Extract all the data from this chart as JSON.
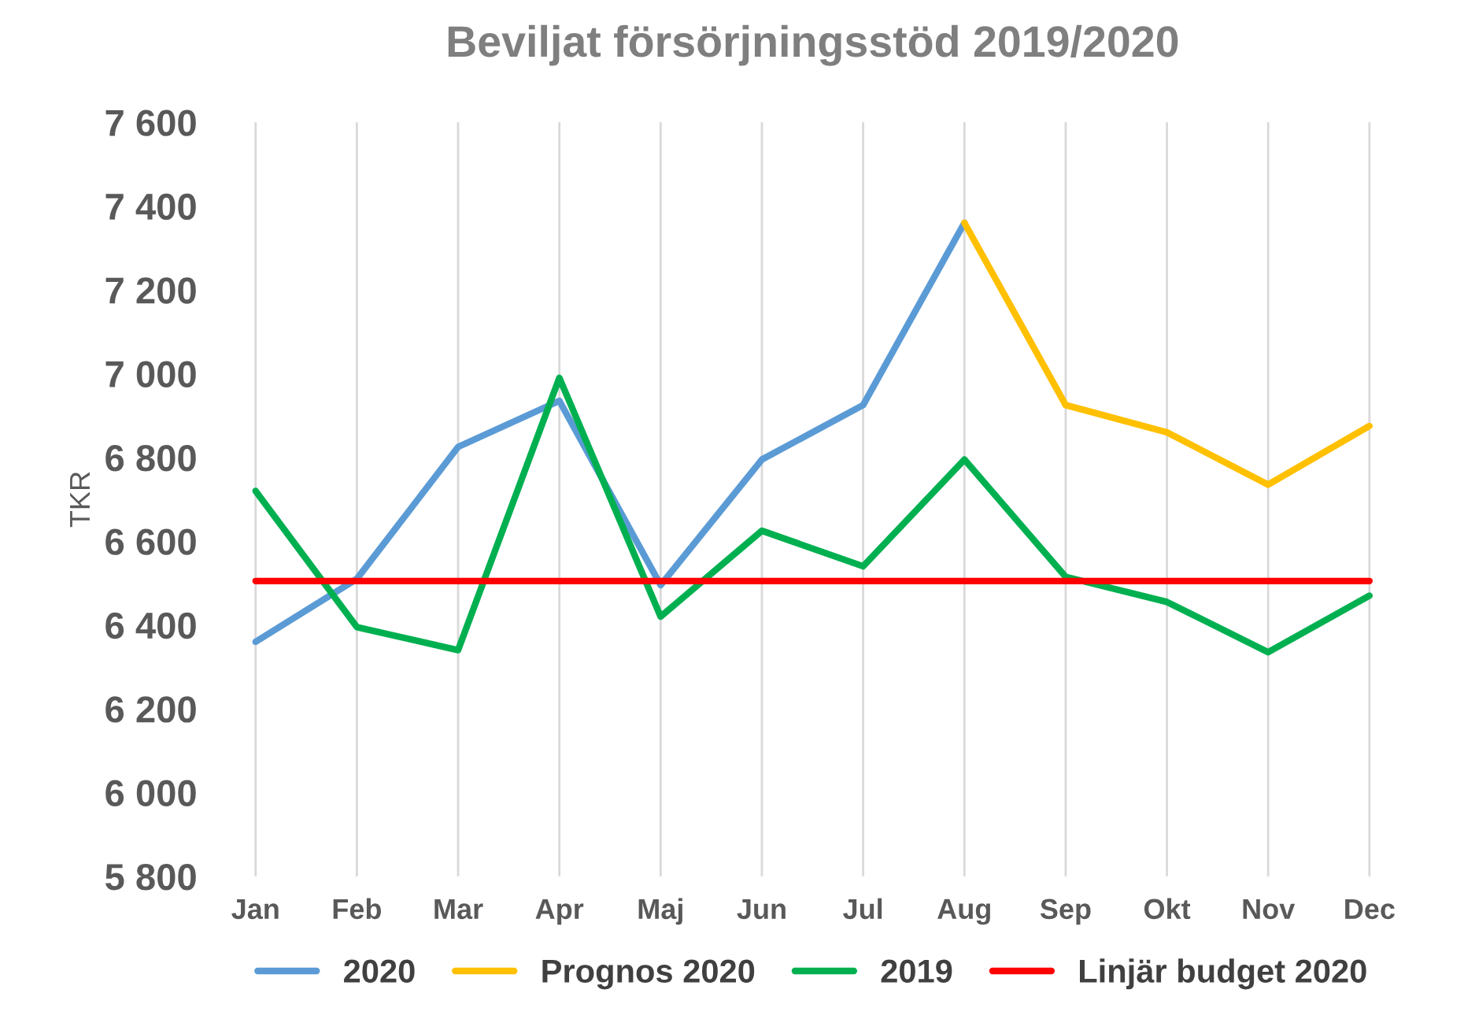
{
  "chart_data": {
    "type": "line",
    "title": "Beviljat försörjningsstöd 2019/2020",
    "ylabel": "TKR",
    "categories": [
      "Jan",
      "Feb",
      "Mar",
      "Apr",
      "Maj",
      "Jun",
      "Jul",
      "Aug",
      "Sep",
      "Okt",
      "Nov",
      "Dec"
    ],
    "series": [
      {
        "name": "2020",
        "color": "#5b9bd5",
        "values": [
          6360,
          6510,
          6825,
          6935,
          6495,
          6795,
          6925,
          7360,
          null,
          null,
          null,
          null
        ]
      },
      {
        "name": "Prognos 2020",
        "color": "#ffc000",
        "values": [
          null,
          null,
          null,
          null,
          null,
          null,
          null,
          7360,
          6925,
          6860,
          6735,
          6875
        ]
      },
      {
        "name": "2019",
        "color": "#00b050",
        "values": [
          6720,
          6395,
          6340,
          6990,
          6420,
          6625,
          6540,
          6795,
          6515,
          6455,
          6335,
          6470
        ]
      },
      {
        "name": "Linjär budget 2020",
        "color": "#ff0000",
        "values": [
          6505,
          6505,
          6505,
          6505,
          6505,
          6505,
          6505,
          6505,
          6505,
          6505,
          6505,
          6505
        ]
      }
    ],
    "ylim": [
      5800,
      7600
    ],
    "yticks": [
      {
        "value": 5800,
        "label": "5 800"
      },
      {
        "value": 6000,
        "label": "6 000"
      },
      {
        "value": 6200,
        "label": "6 200"
      },
      {
        "value": 6400,
        "label": "6 400"
      },
      {
        "value": 6600,
        "label": "6 600"
      },
      {
        "value": 6800,
        "label": "6 800"
      },
      {
        "value": 7000,
        "label": "7 000"
      },
      {
        "value": 7200,
        "label": "7 200"
      },
      {
        "value": 7400,
        "label": "7 400"
      },
      {
        "value": 7600,
        "label": "7 600"
      }
    ],
    "grid": "x",
    "legend": "bottom",
    "marker": "none",
    "line_style": "solid"
  }
}
